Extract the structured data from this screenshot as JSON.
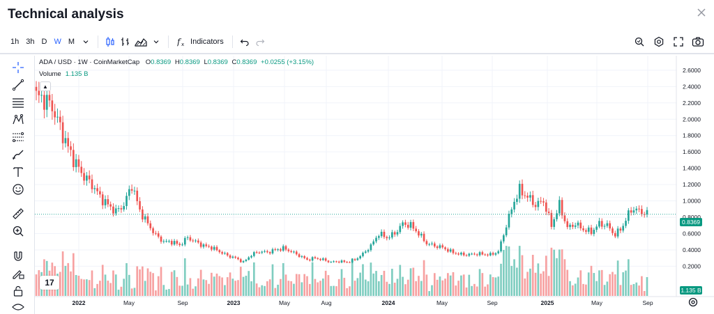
{
  "header": {
    "title": "Technical analysis"
  },
  "toolbar": {
    "intervals": [
      "1h",
      "3h",
      "D",
      "W",
      "M"
    ],
    "active_interval": "W",
    "indicators_label": "Indicators"
  },
  "legend": {
    "symbol": "ADA / USD · 1W · CoinMarketCap",
    "open_label": "O",
    "open": "0.8369",
    "high_label": "H",
    "high": "0.8369",
    "low_label": "L",
    "low": "0.8369",
    "close_label": "C",
    "close": "0.8369",
    "change": "+0.0255 (+3.15%)",
    "volume_label": "Volume",
    "volume_value": "1.135 B"
  },
  "price_tag": "0.8369",
  "volume_tag": "1.135 B",
  "logo_text": "17",
  "colors": {
    "up": "#26a69a",
    "down": "#ef5350",
    "vol_up": "#7fcdc0",
    "vol_down": "#f7a1a1",
    "accent": "#2962ff"
  },
  "chart_data": {
    "type": "candlestick",
    "symbol": "ADA / USD",
    "interval": "1W",
    "y_axis_ticks": [
      "2.6000",
      "2.4000",
      "2.2000",
      "2.0000",
      "1.8000",
      "1.6000",
      "1.4000",
      "1.2000",
      "1.0000",
      "0.8000",
      "0.6000",
      "0.4000",
      "0.2000"
    ],
    "y_range": [
      0.05,
      2.65
    ],
    "x_axis_labels": [
      "2022",
      "May",
      "Sep",
      "2023",
      "May",
      "Aug",
      "2024",
      "May",
      "Sep",
      "2025",
      "May",
      "Sep"
    ],
    "x_axis_bold": [
      "2022",
      "2023",
      "2024",
      "2025"
    ],
    "close_path": [
      [
        0,
        2.28
      ],
      [
        3,
        2.25
      ],
      [
        6,
        2.15
      ],
      [
        9,
        1.9
      ],
      [
        12,
        1.65
      ],
      [
        15,
        1.45
      ],
      [
        18,
        1.3
      ],
      [
        21,
        1.2
      ],
      [
        24,
        1.05
      ],
      [
        27,
        0.95
      ],
      [
        30,
        0.87
      ],
      [
        33,
        0.95
      ],
      [
        36,
        1.2
      ],
      [
        39,
        0.88
      ],
      [
        42,
        0.72
      ],
      [
        45,
        0.58
      ],
      [
        48,
        0.5
      ],
      [
        51,
        0.5
      ],
      [
        54,
        0.46
      ],
      [
        57,
        0.55
      ],
      [
        60,
        0.5
      ],
      [
        63,
        0.45
      ],
      [
        66,
        0.43
      ],
      [
        69,
        0.38
      ],
      [
        72,
        0.33
      ],
      [
        75,
        0.3
      ],
      [
        78,
        0.25
      ],
      [
        81,
        0.34
      ],
      [
        84,
        0.38
      ],
      [
        87,
        0.37
      ],
      [
        90,
        0.4
      ],
      [
        93,
        0.42
      ],
      [
        96,
        0.38
      ],
      [
        99,
        0.33
      ],
      [
        102,
        0.28
      ],
      [
        105,
        0.3
      ],
      [
        108,
        0.28
      ],
      [
        111,
        0.25
      ],
      [
        114,
        0.26
      ],
      [
        117,
        0.25
      ],
      [
        120,
        0.28
      ],
      [
        123,
        0.35
      ],
      [
        126,
        0.45
      ],
      [
        129,
        0.6
      ],
      [
        132,
        0.55
      ],
      [
        135,
        0.6
      ],
      [
        138,
        0.72
      ],
      [
        141,
        0.7
      ],
      [
        144,
        0.6
      ],
      [
        147,
        0.48
      ],
      [
        150,
        0.45
      ],
      [
        153,
        0.43
      ],
      [
        156,
        0.38
      ],
      [
        159,
        0.35
      ],
      [
        162,
        0.34
      ],
      [
        165,
        0.35
      ],
      [
        168,
        0.35
      ],
      [
        171,
        0.34
      ],
      [
        174,
        0.38
      ],
      [
        177,
        0.7
      ],
      [
        180,
        1.0
      ],
      [
        182,
        1.13
      ],
      [
        185,
        1.05
      ],
      [
        188,
        0.95
      ],
      [
        191,
        1.0
      ],
      [
        194,
        0.7
      ],
      [
        197,
        0.95
      ],
      [
        200,
        0.67
      ],
      [
        203,
        0.72
      ],
      [
        206,
        0.65
      ],
      [
        209,
        0.62
      ],
      [
        212,
        0.72
      ],
      [
        215,
        0.7
      ],
      [
        218,
        0.58
      ],
      [
        221,
        0.7
      ],
      [
        224,
        0.9
      ],
      [
        227,
        0.88
      ],
      [
        230,
        0.84
      ]
    ]
  }
}
